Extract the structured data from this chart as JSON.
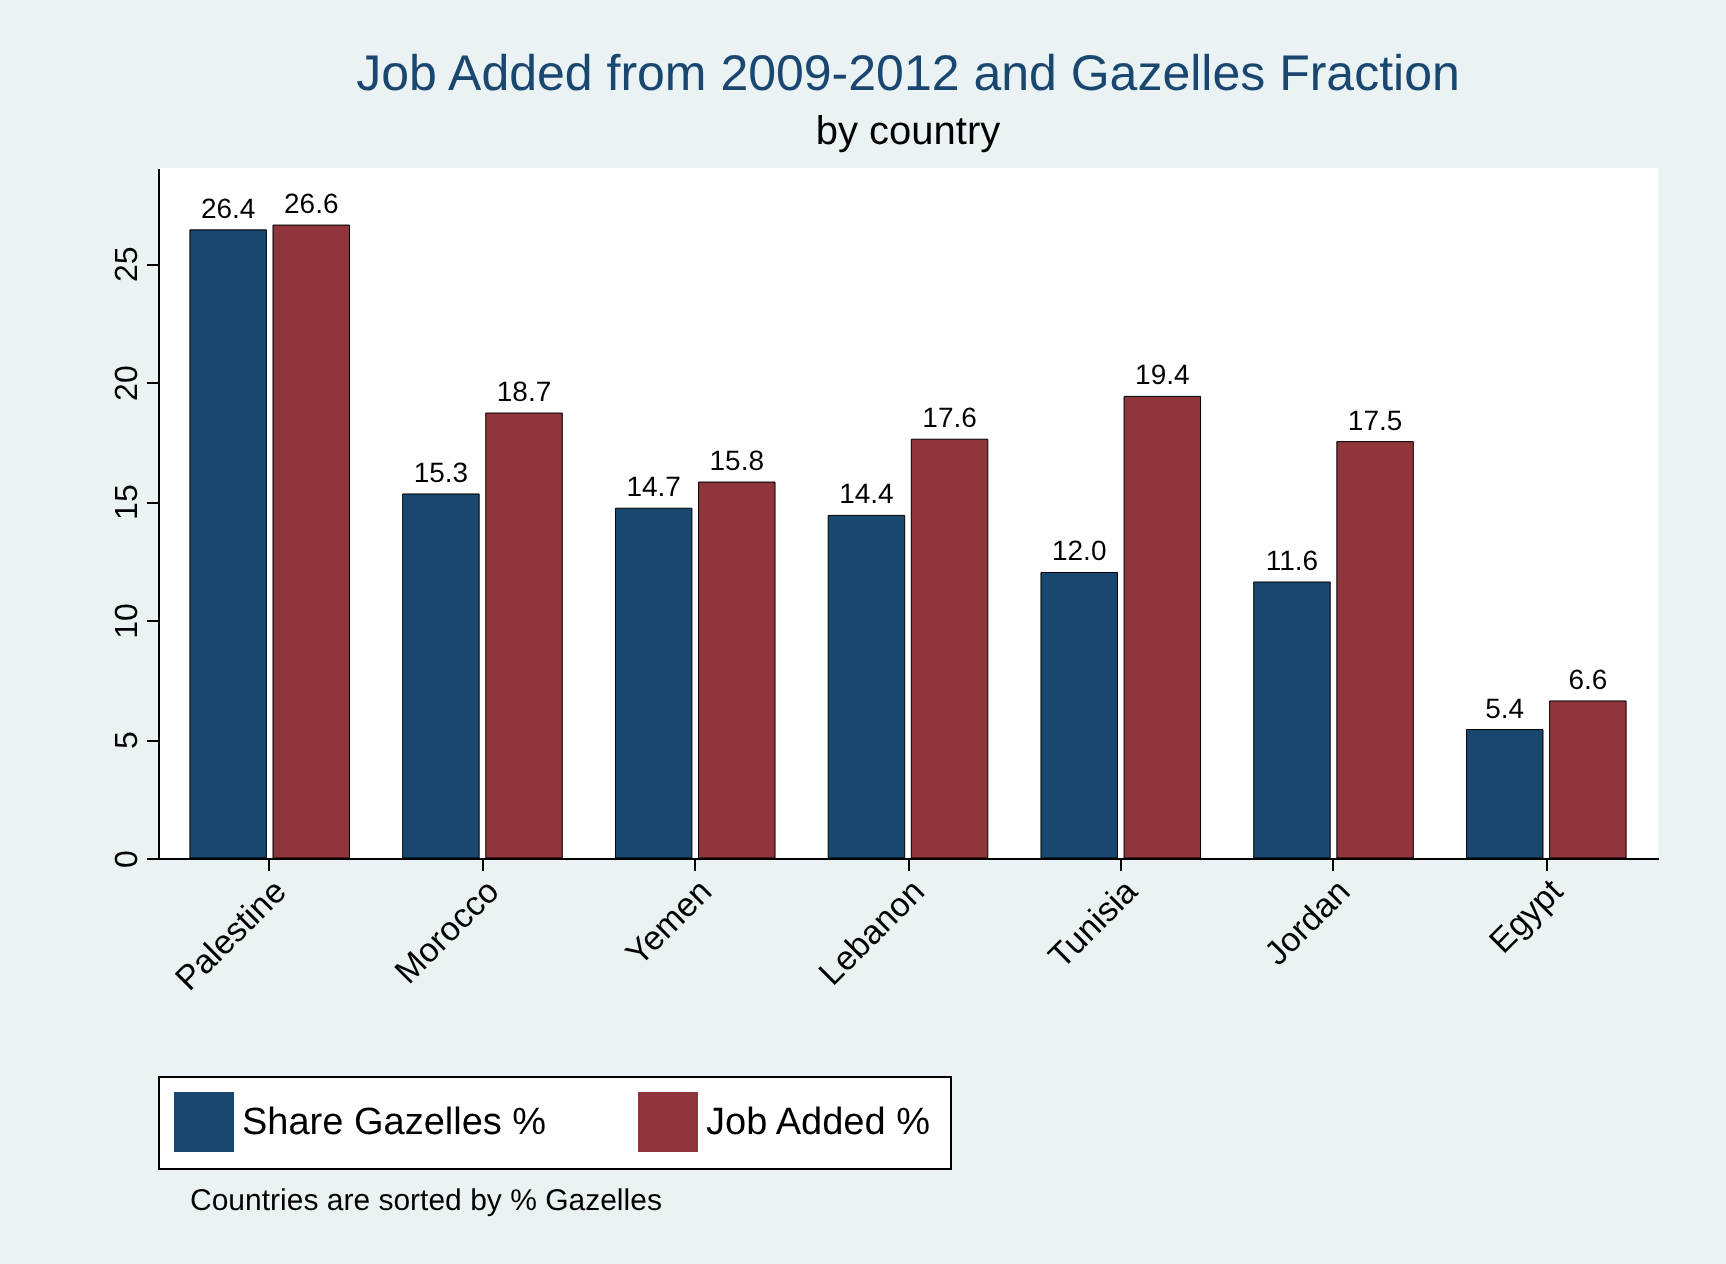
{
  "chart_data": {
    "type": "bar",
    "title": "Job Added from 2009-2012 and Gazelles Fraction",
    "subtitle": "by  country",
    "categories": [
      "Palestine",
      "Morocco",
      "Yemen",
      "Lebanon",
      "Tunisia",
      "Jordan",
      "Egypt"
    ],
    "series": [
      {
        "name": "Share  Gazelles %",
        "color": "#1a476f",
        "values": [
          26.4,
          15.3,
          14.7,
          14.4,
          12.0,
          11.6,
          5.4
        ],
        "value_labels": [
          "26.4",
          "15.3",
          "14.7",
          "14.4",
          "12.0",
          "11.6",
          "5.4"
        ]
      },
      {
        "name": "Job Added %",
        "color": "#90353b",
        "values": [
          26.6,
          18.7,
          15.8,
          17.6,
          19.4,
          17.5,
          6.6
        ],
        "value_labels": [
          "26.6",
          "18.7",
          "15.8",
          "17.6",
          "19.4",
          "17.5",
          "6.6"
        ]
      }
    ],
    "ylim": [
      0,
      29
    ],
    "yticks": [
      0,
      5,
      10,
      15,
      20,
      25
    ],
    "grid": false,
    "legend": "bottom",
    "annotations": [
      "Countries are sorted by % Gazelles"
    ]
  }
}
